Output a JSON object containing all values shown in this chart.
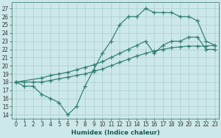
{
  "xlabel": "Humidex (Indice chaleur)",
  "x_ticks": [
    0,
    1,
    2,
    3,
    4,
    5,
    6,
    7,
    8,
    9,
    10,
    11,
    12,
    13,
    14,
    15,
    16,
    17,
    18,
    19,
    20,
    21,
    22,
    23
  ],
  "y_ticks": [
    14,
    15,
    16,
    17,
    18,
    19,
    20,
    21,
    22,
    23,
    24,
    25,
    26,
    27
  ],
  "ylim": [
    13.5,
    27.8
  ],
  "xlim": [
    -0.5,
    23.5
  ],
  "line1_x": [
    0,
    1,
    2,
    3,
    4,
    5,
    6,
    7,
    8,
    9,
    10,
    11,
    12,
    13,
    14,
    15,
    16,
    17,
    18,
    19,
    20,
    21,
    22,
    23
  ],
  "line1_y": [
    18,
    17.5,
    17.5,
    16.5,
    16,
    15.5,
    14,
    15,
    17.5,
    19.5,
    21.5,
    23.0,
    25.0,
    26.0,
    26.0,
    27.0,
    26.5,
    26.5,
    26.5,
    26.0,
    26.0,
    25.5,
    23.0,
    22.5
  ],
  "line2_x": [
    0,
    1,
    2,
    3,
    4,
    5,
    6,
    7,
    8,
    9,
    10,
    11,
    12,
    13,
    14,
    15,
    16,
    17,
    18,
    19,
    20,
    21,
    22,
    23
  ],
  "line2_y": [
    18,
    18,
    18,
    18,
    18.2,
    18.4,
    18.6,
    18.8,
    19.0,
    19.3,
    19.6,
    20.0,
    20.4,
    20.8,
    21.2,
    21.5,
    21.8,
    22.0,
    22.2,
    22.3,
    22.4,
    22.4,
    22.4,
    22.5
  ],
  "line3_x": [
    0,
    3,
    4,
    5,
    6,
    7,
    8,
    9,
    10,
    11,
    12,
    13,
    14,
    15,
    16,
    17,
    18,
    19,
    20,
    21,
    22,
    23
  ],
  "line3_y": [
    18,
    18.5,
    18.8,
    19.0,
    19.2,
    19.5,
    19.8,
    20.1,
    20.5,
    21.0,
    21.5,
    22.0,
    22.5,
    23.0,
    21.5,
    22.5,
    23.0,
    23.0,
    23.5,
    23.5,
    22.0,
    22.0
  ],
  "line_color": "#2e7d6e",
  "bg_color": "#cce8e8",
  "grid_color": "#aacccc",
  "marker": "+",
  "linewidth": 0.9,
  "markersize": 4,
  "markeredgewidth": 0.9,
  "xlabel_fontsize": 6.5,
  "tick_fontsize": 5.5
}
